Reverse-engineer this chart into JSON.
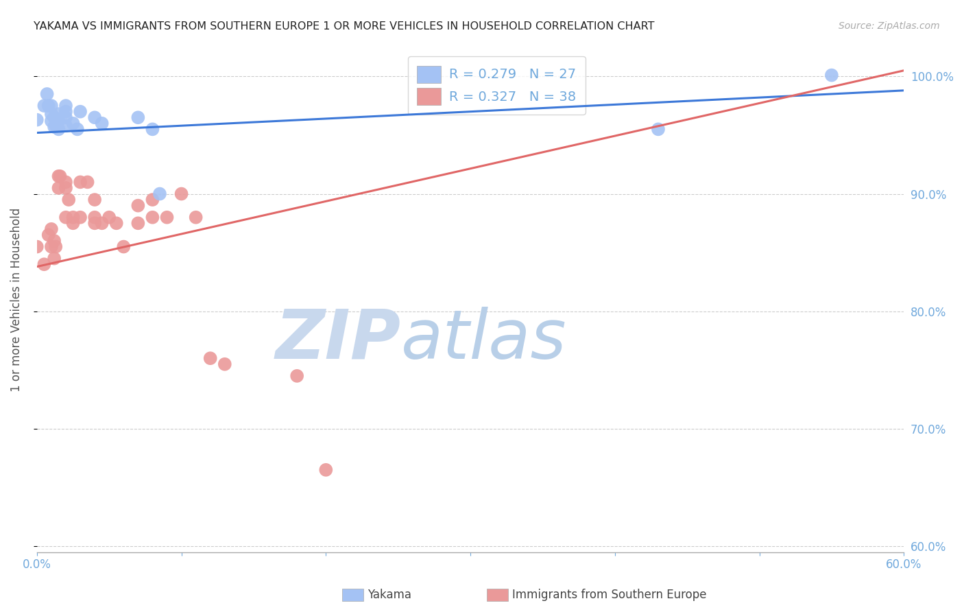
{
  "title": "YAKAMA VS IMMIGRANTS FROM SOUTHERN EUROPE 1 OR MORE VEHICLES IN HOUSEHOLD CORRELATION CHART",
  "source": "Source: ZipAtlas.com",
  "ylabel": "1 or more Vehicles in Household",
  "watermark_zip": "ZIP",
  "watermark_atlas": "atlas",
  "xmin": 0.0,
  "xmax": 0.6,
  "ymin": 0.595,
  "ymax": 1.025,
  "yticks": [
    1.0,
    0.9,
    0.8,
    0.7,
    0.6
  ],
  "ytick_labels": [
    "100.0%",
    "90.0%",
    "80.0%",
    "70.0%",
    "60.0%"
  ],
  "xticks": [
    0.0,
    0.1,
    0.2,
    0.3,
    0.4,
    0.5,
    0.6
  ],
  "xtick_labels": [
    "0.0%",
    "",
    "",
    "",
    "",
    "",
    "60.0%"
  ],
  "blue_color": "#a4c2f4",
  "pink_color": "#ea9999",
  "blue_line_color": "#3c78d8",
  "pink_line_color": "#e06666",
  "axis_color": "#6fa8dc",
  "watermark_color": "#cfe2f3",
  "legend_blue_label": "R = 0.279   N = 27",
  "legend_pink_label": "R = 0.327   N = 38",
  "blue_line_x0": 0.0,
  "blue_line_y0": 0.952,
  "blue_line_x1": 0.6,
  "blue_line_y1": 0.988,
  "pink_line_x0": 0.0,
  "pink_line_y0": 0.838,
  "pink_line_x1": 0.6,
  "pink_line_y1": 1.005,
  "yakama_x": [
    0.0,
    0.005,
    0.007,
    0.008,
    0.01,
    0.01,
    0.01,
    0.012,
    0.012,
    0.013,
    0.015,
    0.015,
    0.015,
    0.02,
    0.02,
    0.02,
    0.02,
    0.025,
    0.028,
    0.03,
    0.04,
    0.045,
    0.07,
    0.08,
    0.085,
    0.43,
    0.55
  ],
  "yakama_y": [
    0.963,
    0.975,
    0.985,
    0.975,
    0.975,
    0.968,
    0.962,
    0.957,
    0.965,
    0.958,
    0.955,
    0.962,
    0.968,
    0.965,
    0.958,
    0.97,
    0.975,
    0.96,
    0.955,
    0.97,
    0.965,
    0.96,
    0.965,
    0.955,
    0.9,
    0.955,
    1.001
  ],
  "immig_x": [
    0.0,
    0.005,
    0.008,
    0.01,
    0.01,
    0.012,
    0.012,
    0.013,
    0.015,
    0.015,
    0.016,
    0.02,
    0.02,
    0.02,
    0.022,
    0.025,
    0.025,
    0.03,
    0.03,
    0.035,
    0.04,
    0.04,
    0.04,
    0.045,
    0.05,
    0.055,
    0.06,
    0.07,
    0.07,
    0.08,
    0.08,
    0.09,
    0.1,
    0.11,
    0.12,
    0.13,
    0.18,
    0.2
  ],
  "immig_y": [
    0.855,
    0.84,
    0.865,
    0.87,
    0.855,
    0.845,
    0.86,
    0.855,
    0.915,
    0.905,
    0.915,
    0.905,
    0.91,
    0.88,
    0.895,
    0.875,
    0.88,
    0.91,
    0.88,
    0.91,
    0.875,
    0.88,
    0.895,
    0.875,
    0.88,
    0.875,
    0.855,
    0.89,
    0.875,
    0.895,
    0.88,
    0.88,
    0.9,
    0.88,
    0.76,
    0.755,
    0.745,
    0.665
  ]
}
